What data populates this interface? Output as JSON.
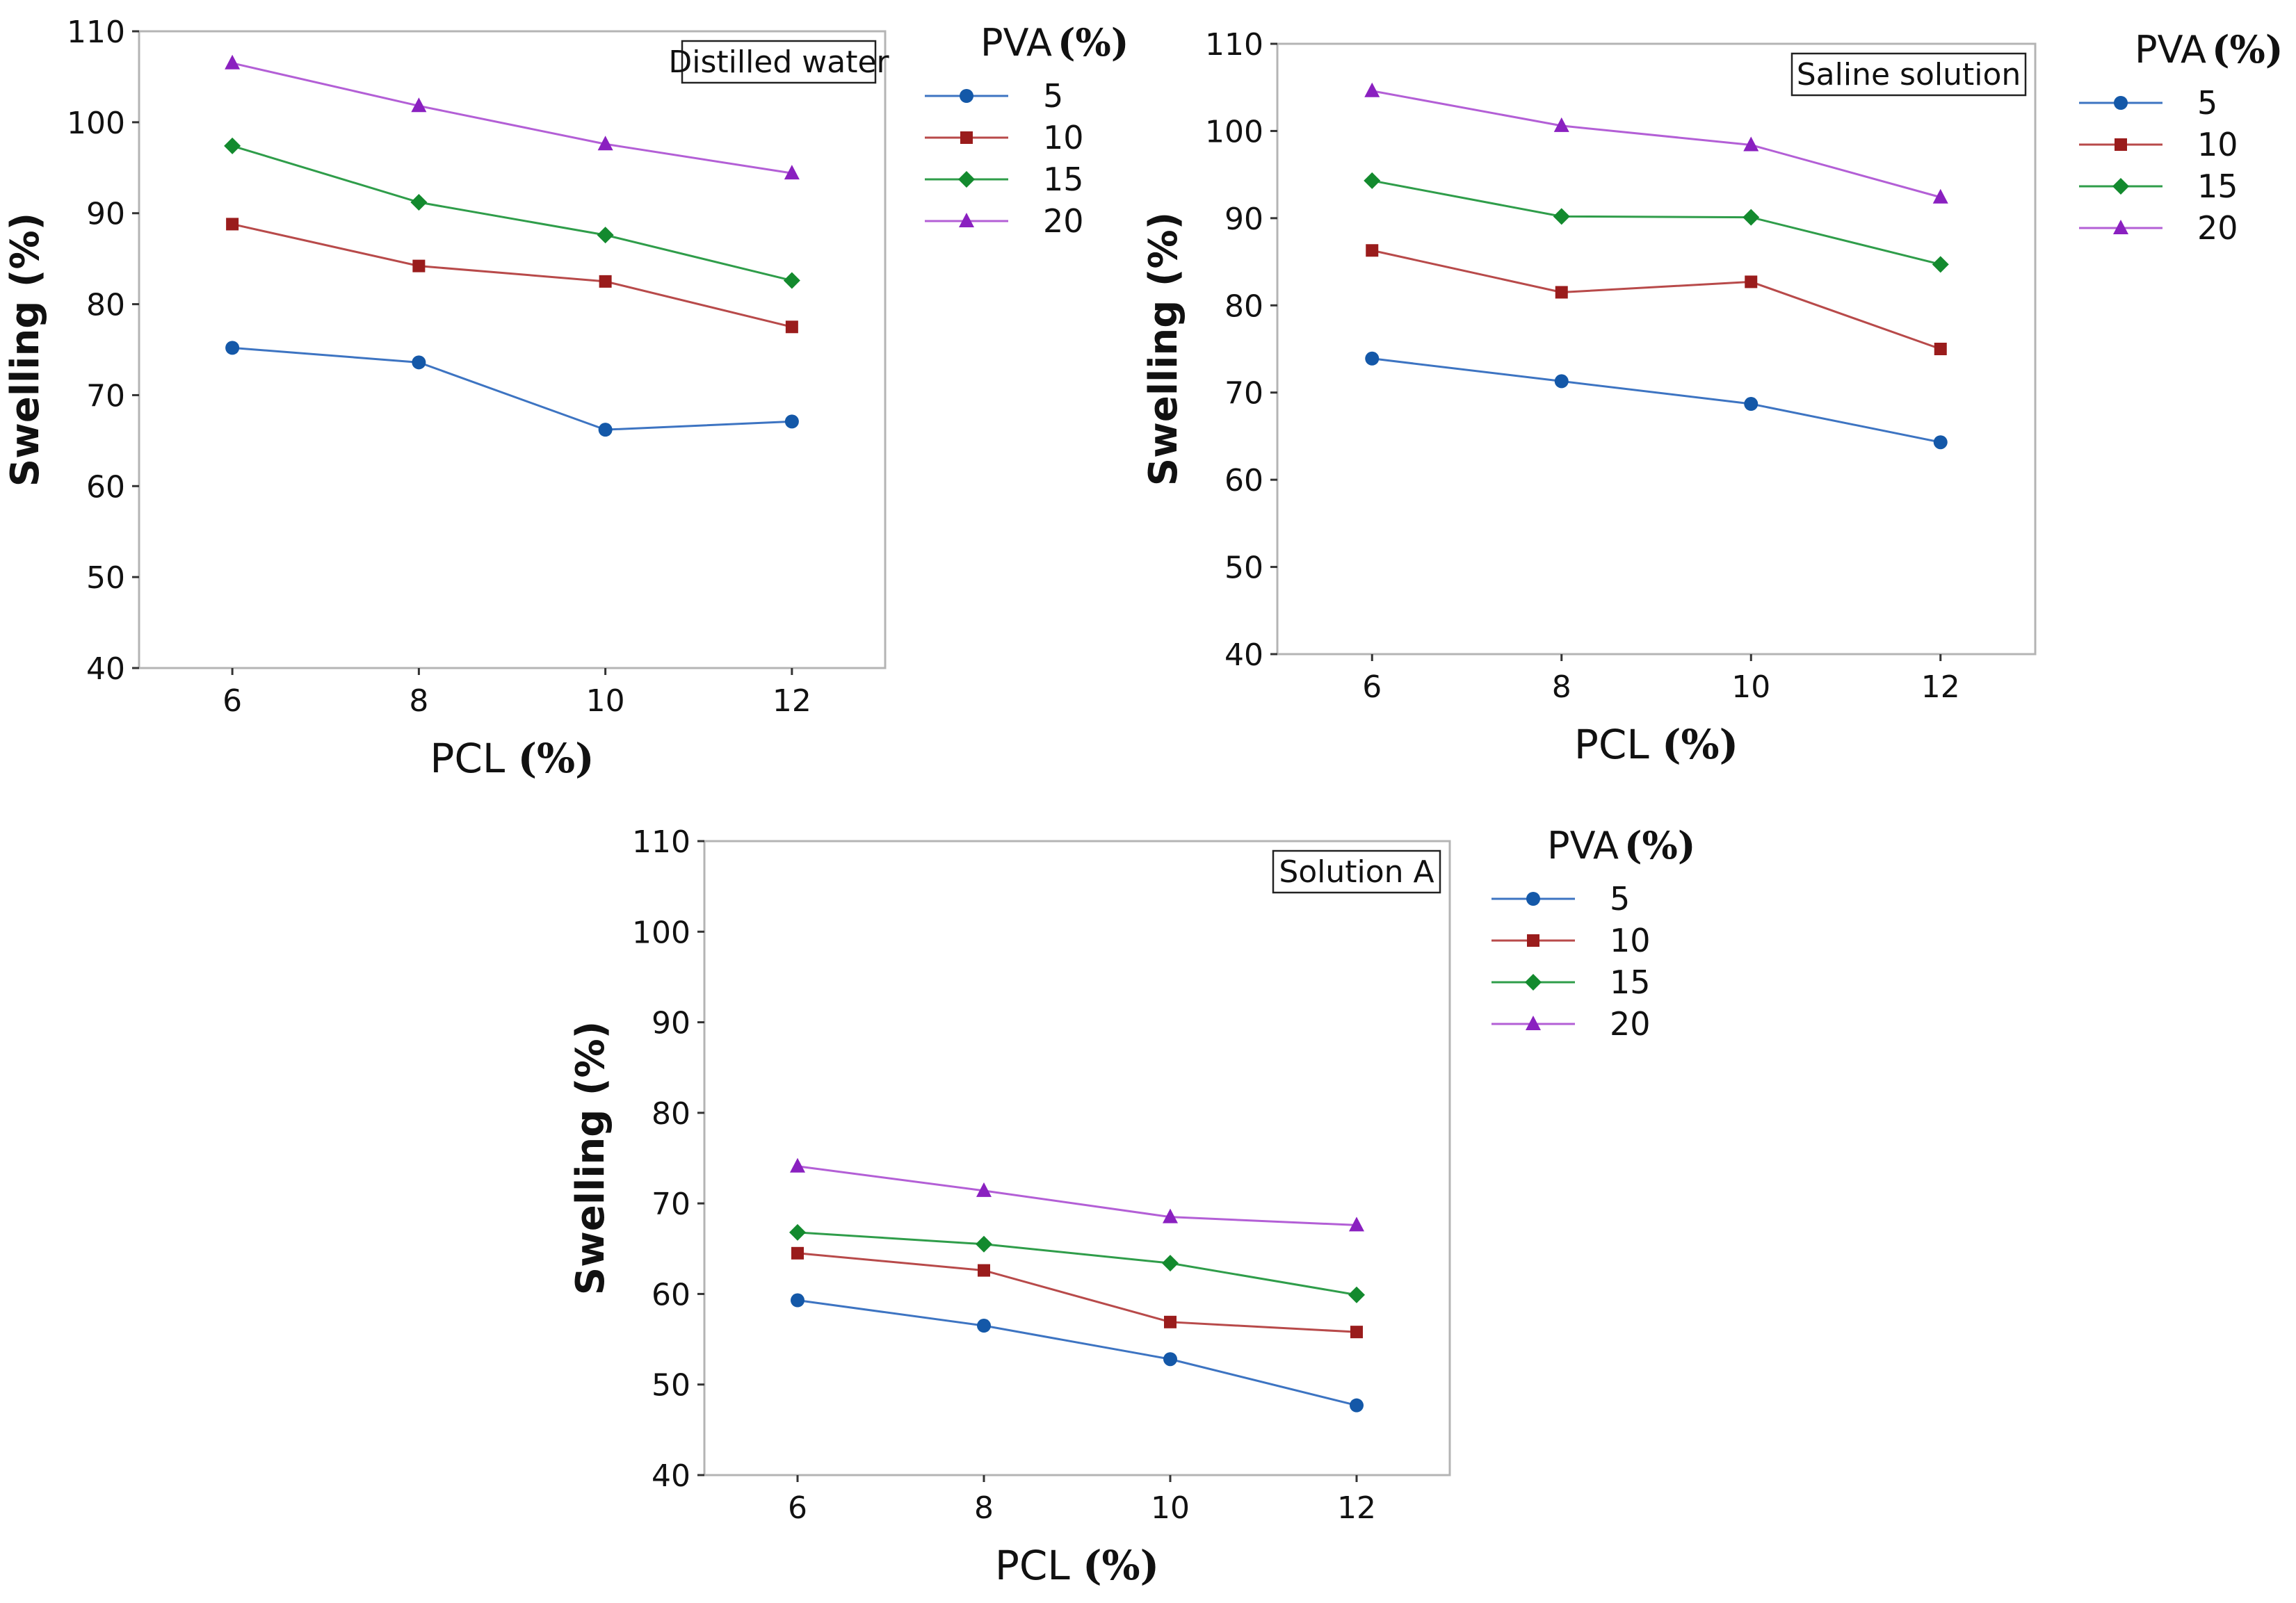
{
  "colors": {
    "5": "#3d74c2",
    "10": "#b84a4a",
    "15": "#2f9d4a",
    "20": "#b35fd6",
    "marker_5": "#1458a8",
    "marker_10": "#9a1c1c",
    "marker_15": "#138a2e",
    "marker_20": "#8a20c0"
  },
  "chart_data": [
    {
      "type": "line",
      "title": "Distilled water",
      "xlabel": "PCL",
      "xlabel_unit": "(%)",
      "ylabel": "Swelling (%)",
      "x": [
        6,
        8,
        10,
        12
      ],
      "xticks": [
        "6",
        "8",
        "10",
        "12"
      ],
      "xlim": [
        5,
        13
      ],
      "ylim": [
        40,
        110
      ],
      "yticks": [
        "40",
        "50",
        "60",
        "70",
        "80",
        "90",
        "100",
        "110"
      ],
      "legend_title": "PVA",
      "legend_title_unit": "(%)",
      "series": [
        {
          "name": "5",
          "marker": "circle",
          "values": [
            75.2,
            73.6,
            66.2,
            67.1
          ]
        },
        {
          "name": "10",
          "marker": "square",
          "values": [
            88.8,
            84.2,
            82.5,
            77.5
          ]
        },
        {
          "name": "15",
          "marker": "diamond",
          "values": [
            97.4,
            91.2,
            87.6,
            82.6
          ]
        },
        {
          "name": "20",
          "marker": "triangle",
          "values": [
            106.5,
            101.8,
            97.6,
            94.4
          ]
        }
      ]
    },
    {
      "type": "line",
      "title": "Saline solution",
      "xlabel": "PCL",
      "xlabel_unit": "(%)",
      "ylabel": "Swelling (%)",
      "x": [
        6,
        8,
        10,
        12
      ],
      "xticks": [
        "6",
        "8",
        "10",
        "12"
      ],
      "xlim": [
        5,
        13
      ],
      "ylim": [
        40,
        110
      ],
      "yticks": [
        "40",
        "50",
        "60",
        "70",
        "80",
        "90",
        "100",
        "110"
      ],
      "legend_title": "PVA",
      "legend_title_unit": "(%)",
      "series": [
        {
          "name": "5",
          "marker": "circle",
          "values": [
            73.9,
            71.3,
            68.7,
            64.3
          ]
        },
        {
          "name": "10",
          "marker": "square",
          "values": [
            86.3,
            81.5,
            82.7,
            75.0
          ]
        },
        {
          "name": "15",
          "marker": "diamond",
          "values": [
            94.3,
            90.2,
            90.1,
            84.7
          ]
        },
        {
          "name": "20",
          "marker": "triangle",
          "values": [
            104.6,
            100.6,
            98.4,
            92.4
          ]
        }
      ]
    },
    {
      "type": "line",
      "title": "Solution A",
      "xlabel": "PCL",
      "xlabel_unit": "(%)",
      "ylabel": "Swelling (%)",
      "x": [
        6,
        8,
        10,
        12
      ],
      "xticks": [
        "6",
        "8",
        "10",
        "12"
      ],
      "xlim": [
        5,
        13
      ],
      "ylim": [
        40,
        110
      ],
      "yticks": [
        "40",
        "50",
        "60",
        "70",
        "80",
        "90",
        "100",
        "110"
      ],
      "legend_title": "PVA",
      "legend_title_unit": "(%)",
      "series": [
        {
          "name": "5",
          "marker": "circle",
          "values": [
            59.3,
            56.5,
            52.8,
            47.7
          ]
        },
        {
          "name": "10",
          "marker": "square",
          "values": [
            64.5,
            62.6,
            56.9,
            55.8
          ]
        },
        {
          "name": "15",
          "marker": "diamond",
          "values": [
            66.8,
            65.5,
            63.4,
            59.9
          ]
        },
        {
          "name": "20",
          "marker": "triangle",
          "values": [
            74.1,
            71.4,
            68.5,
            67.6
          ]
        }
      ]
    }
  ]
}
